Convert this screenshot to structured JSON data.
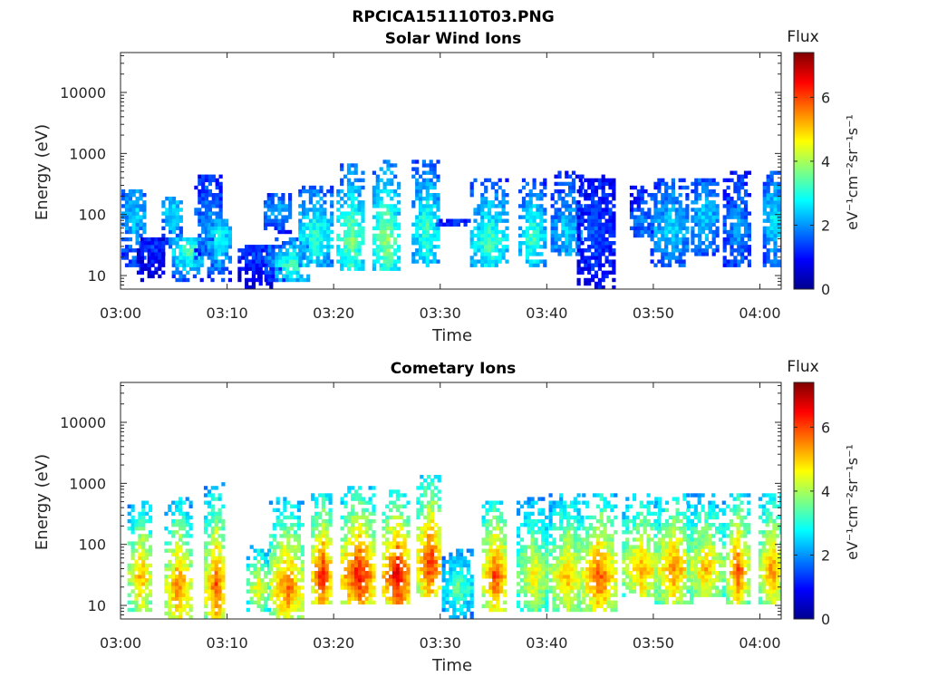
{
  "figure_title": "RPCICA151110T03.PNG",
  "chart_data": [
    {
      "type": "heatmap",
      "title": "Solar Wind Ions",
      "xlabel": "Time",
      "ylabel": "Energy (eV)",
      "x_ticks": [
        "03:00",
        "03:10",
        "03:20",
        "03:30",
        "03:40",
        "03:50",
        "04:00"
      ],
      "x_range_minutes": [
        0,
        62
      ],
      "y_scale": "log",
      "y_ticks": [
        10,
        100,
        1000,
        10000
      ],
      "y_tick_labels": [
        "10",
        "100",
        "1000",
        "10000"
      ],
      "y_range": [
        6,
        45000
      ],
      "colorbar": {
        "label": "Flux",
        "units": "eV⁻¹cm⁻²sr⁻¹s⁻¹",
        "range": [
          0,
          7.4
        ],
        "ticks": [
          0,
          2,
          4,
          6
        ]
      },
      "bursts": [
        {
          "t": 1.2,
          "lo": 12,
          "peak": 100,
          "hi": 250,
          "flux": 2.6
        },
        {
          "t": 2.8,
          "lo": 8,
          "peak": 30,
          "hi": 40,
          "flux": 1.3
        },
        {
          "t": 4.8,
          "lo": 20,
          "peak": 110,
          "hi": 200,
          "flux": 2.8
        },
        {
          "t": 6.2,
          "lo": 8,
          "peak": 25,
          "hi": 40,
          "flux": 3.5
        },
        {
          "t": 8.1,
          "lo": 18,
          "peak": 70,
          "hi": 450,
          "flux": 2.2
        },
        {
          "t": 9.2,
          "lo": 8,
          "peak": 40,
          "hi": 80,
          "flux": 3.0
        },
        {
          "t": 12.5,
          "lo": 6,
          "peak": 20,
          "hi": 30,
          "flux": 1.4
        },
        {
          "t": 14.0,
          "lo": 8,
          "peak": 20,
          "hi": 30,
          "flux": 2.0
        },
        {
          "t": 14.7,
          "lo": 50,
          "peak": 120,
          "hi": 220,
          "flux": 2.4
        },
        {
          "t": 16.0,
          "lo": 8,
          "peak": 15,
          "hi": 40,
          "flux": 3.4
        },
        {
          "t": 18.2,
          "lo": 14,
          "peak": 45,
          "hi": 300,
          "flux": 3.3
        },
        {
          "t": 21.5,
          "lo": 12,
          "peak": 40,
          "hi": 700,
          "flux": 3.8
        },
        {
          "t": 24.8,
          "lo": 12,
          "peak": 40,
          "hi": 800,
          "flux": 4.0
        },
        {
          "t": 28.6,
          "lo": 14,
          "peak": 60,
          "hi": 800,
          "flux": 3.3
        },
        {
          "t": 31.0,
          "lo": 60,
          "peak": 70,
          "hi": 80,
          "flux": 1.5
        },
        {
          "t": 34.5,
          "lo": 14,
          "peak": 35,
          "hi": 400,
          "flux": 3.4
        },
        {
          "t": 38.5,
          "lo": 14,
          "peak": 40,
          "hi": 400,
          "flux": 3.3
        },
        {
          "t": 41.8,
          "lo": 20,
          "peak": 50,
          "hi": 500,
          "flux": 2.6
        },
        {
          "t": 44.6,
          "lo": 6,
          "peak": 60,
          "hi": 450,
          "flux": 1.5
        },
        {
          "t": 48.8,
          "lo": 40,
          "peak": 80,
          "hi": 300,
          "flux": 2.0
        },
        {
          "t": 51.5,
          "lo": 14,
          "peak": 60,
          "hi": 400,
          "flux": 2.6
        },
        {
          "t": 54.7,
          "lo": 20,
          "peak": 90,
          "hi": 400,
          "flux": 2.6
        },
        {
          "t": 57.8,
          "lo": 14,
          "peak": 60,
          "hi": 500,
          "flux": 2.1
        },
        {
          "t": 61.2,
          "lo": 14,
          "peak": 90,
          "hi": 500,
          "flux": 2.8
        }
      ]
    },
    {
      "type": "heatmap",
      "title": "Cometary Ions",
      "xlabel": "Time",
      "ylabel": "Energy (eV)",
      "x_ticks": [
        "03:00",
        "03:10",
        "03:20",
        "03:30",
        "03:40",
        "03:50",
        "04:00"
      ],
      "x_range_minutes": [
        0,
        62
      ],
      "y_scale": "log",
      "y_ticks": [
        10,
        100,
        1000,
        10000
      ],
      "y_tick_labels": [
        "10",
        "100",
        "1000",
        "10000"
      ],
      "y_range": [
        6,
        45000
      ],
      "colorbar": {
        "label": "Flux",
        "units": "eV⁻¹cm⁻²sr⁻¹s⁻¹",
        "range": [
          0,
          7.4
        ],
        "ticks": [
          0,
          2,
          4,
          6
        ]
      },
      "bursts": [
        {
          "t": 1.8,
          "lo": 8,
          "peak": 30,
          "hi": 500,
          "flux": 5.4
        },
        {
          "t": 5.3,
          "lo": 6,
          "peak": 20,
          "hi": 600,
          "flux": 5.8
        },
        {
          "t": 8.8,
          "lo": 6,
          "peak": 20,
          "hi": 1000,
          "flux": 6.0
        },
        {
          "t": 12.8,
          "lo": 8,
          "peak": 20,
          "hi": 100,
          "flux": 4.8
        },
        {
          "t": 15.5,
          "lo": 6,
          "peak": 20,
          "hi": 600,
          "flux": 5.8
        },
        {
          "t": 18.8,
          "lo": 10,
          "peak": 30,
          "hi": 700,
          "flux": 6.5
        },
        {
          "t": 22.2,
          "lo": 10,
          "peak": 30,
          "hi": 900,
          "flux": 6.6
        },
        {
          "t": 25.8,
          "lo": 10,
          "peak": 30,
          "hi": 800,
          "flux": 6.8
        },
        {
          "t": 28.9,
          "lo": 14,
          "peak": 50,
          "hi": 1400,
          "flux": 6.4
        },
        {
          "t": 31.5,
          "lo": 6,
          "peak": 20,
          "hi": 80,
          "flux": 3.6
        },
        {
          "t": 35.0,
          "lo": 8,
          "peak": 30,
          "hi": 550,
          "flux": 6.2
        },
        {
          "t": 38.6,
          "lo": 8,
          "peak": 30,
          "hi": 600,
          "flux": 4.8
        },
        {
          "t": 41.8,
          "lo": 8,
          "peak": 30,
          "hi": 700,
          "flux": 5.2
        },
        {
          "t": 44.8,
          "lo": 8,
          "peak": 30,
          "hi": 700,
          "flux": 6.0
        },
        {
          "t": 48.8,
          "lo": 14,
          "peak": 40,
          "hi": 700,
          "flux": 5.4
        },
        {
          "t": 51.8,
          "lo": 10,
          "peak": 40,
          "hi": 700,
          "flux": 5.6
        },
        {
          "t": 54.8,
          "lo": 14,
          "peak": 40,
          "hi": 700,
          "flux": 5.2
        },
        {
          "t": 57.8,
          "lo": 10,
          "peak": 40,
          "hi": 700,
          "flux": 6.0
        },
        {
          "t": 61.0,
          "lo": 10,
          "peak": 40,
          "hi": 700,
          "flux": 5.6
        }
      ]
    }
  ]
}
